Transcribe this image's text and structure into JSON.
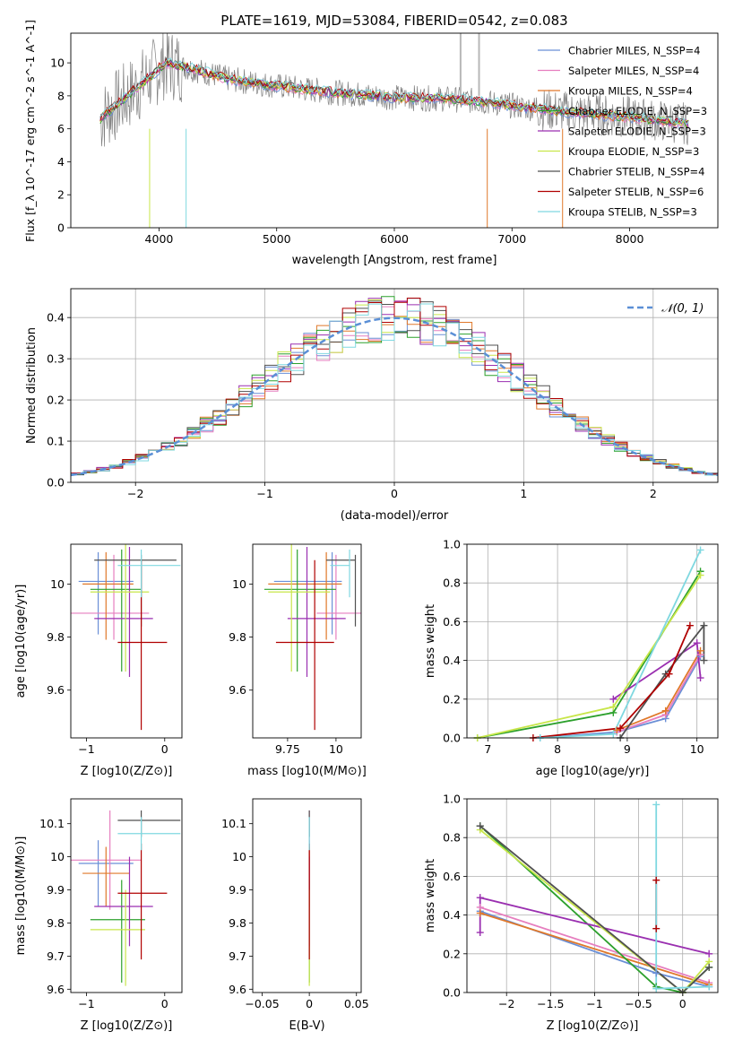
{
  "figure_title": "PLATE=1619, MJD=53084, FIBERID=0542, z=0.083",
  "colors": {
    "Chabrier MILES": "#6a8fd6",
    "Salpeter MILES": "#e67ebf",
    "Kroupa MILES": "#e0782a",
    "Chabrier ELODIE": "#2ca02c",
    "Salpeter ELODIE": "#9a2fb0",
    "Kroupa ELODIE": "#c8e64a",
    "Chabrier STELIB": "#505050",
    "Salpeter STELIB": "#b00000",
    "Kroupa STELIB": "#7fd8e0",
    "data": "#808080",
    "normal": "#5a8fd6"
  },
  "chart_data": [
    {
      "id": "spectrum",
      "type": "line",
      "title": "PLATE=1619, MJD=53084, FIBERID=0542, z=0.083",
      "xlabel": "wavelength [Angstrom, rest frame]",
      "ylabel": "Flux [f_λ 10^-17 erg cm^-2 s^-1 A^-1]",
      "xlim": [
        3250,
        8750
      ],
      "ylim": [
        0,
        11.8
      ],
      "xticks": [
        4000,
        5000,
        6000,
        7000,
        8000
      ],
      "yticks": [
        0,
        2,
        4,
        6,
        8,
        10
      ],
      "legend_position": "top-right",
      "legend": [
        "Chabrier MILES, N_SSP=4",
        "Salpeter MILES, N_SSP=4",
        "Kroupa MILES, N_SSP=4",
        "Chabrier ELODIE, N_SSP=3",
        "Salpeter ELODIE, N_SSP=3",
        "Kroupa ELODIE, N_SSP=3",
        "Chabrier STELIB, N_SSP=4",
        "Salpeter STELIB, N_SSP=6",
        "Kroupa STELIB, N_SSP=3"
      ],
      "continuum": {
        "x": [
          3500,
          3700,
          3900,
          4050,
          4300,
          4600,
          5000,
          5500,
          6000,
          6500,
          6800,
          7100,
          7500,
          8000,
          8500
        ],
        "y": [
          6.6,
          7.8,
          9.0,
          10.0,
          9.6,
          9.0,
          8.6,
          8.2,
          7.9,
          7.8,
          7.6,
          7.3,
          7.0,
          6.7,
          6.3
        ]
      },
      "grid": false
    },
    {
      "id": "residuals",
      "type": "histogram",
      "xlabel": "(data-model)/error",
      "ylabel": "Normed distribution",
      "xlim": [
        -2.5,
        2.5
      ],
      "ylim": [
        0,
        0.47
      ],
      "xticks": [
        -2,
        -1,
        0,
        1,
        2
      ],
      "yticks": [
        0.0,
        0.1,
        0.2,
        0.3,
        0.4
      ],
      "legend": [
        "𝒩(0, 1)"
      ],
      "legend_position": "top-right",
      "bin_width": 0.1,
      "grid": true
    },
    {
      "id": "age_vs_z",
      "type": "errorbar",
      "xlabel": "Z [log10(Z/Z⊙)]",
      "ylabel": "age [log10(age/yr)]",
      "xlim": [
        -1.2,
        0.22
      ],
      "ylim": [
        9.42,
        10.15
      ],
      "xticks": [
        -1,
        0
      ],
      "yticks": [
        9.6,
        9.8,
        10.0
      ],
      "points": [
        {
          "model": "Chabrier MILES",
          "x": -0.85,
          "xerr": [
            0.25,
            0.45
          ],
          "y": 10.01,
          "yerr": [
            0.2,
            0.11
          ]
        },
        {
          "model": "Salpeter MILES",
          "x": -0.65,
          "xerr": [
            0.55,
            0.45
          ],
          "y": 9.89,
          "yerr": [
            0.1,
            0.22
          ]
        },
        {
          "model": "Kroupa MILES",
          "x": -0.75,
          "xerr": [
            0.3,
            0.35
          ],
          "y": 10.0,
          "yerr": [
            0.21,
            0.12
          ]
        },
        {
          "model": "Chabrier ELODIE",
          "x": -0.55,
          "xerr": [
            0.4,
            0.25
          ],
          "y": 9.98,
          "yerr": [
            0.31,
            0.15
          ]
        },
        {
          "model": "Salpeter ELODIE",
          "x": -0.45,
          "xerr": [
            0.45,
            0.3
          ],
          "y": 9.87,
          "yerr": [
            0.22,
            0.27
          ]
        },
        {
          "model": "Kroupa ELODIE",
          "x": -0.5,
          "xerr": [
            0.45,
            0.3
          ],
          "y": 9.97,
          "yerr": [
            0.3,
            0.18
          ]
        },
        {
          "model": "Chabrier STELIB",
          "x": -0.3,
          "xerr": [
            0.6,
            0.45
          ],
          "y": 10.09,
          "yerr": [
            0.25,
            0.02
          ]
        },
        {
          "model": "Salpeter STELIB",
          "x": -0.3,
          "xerr": [
            0.3,
            0.33
          ],
          "y": 9.78,
          "yerr": [
            0.33,
            0.31
          ]
        },
        {
          "model": "Kroupa STELIB",
          "x": -0.3,
          "xerr": [
            0.3,
            0.5
          ],
          "y": 10.07,
          "yerr": [
            0.12,
            0.06
          ]
        }
      ]
    },
    {
      "id": "age_vs_mass",
      "type": "errorbar",
      "xlabel": "mass [log10(M/M⊙)]",
      "ylabel": "",
      "xlim": [
        9.57,
        10.13
      ],
      "ylim": [
        9.42,
        10.15
      ],
      "xticks": [
        9.75,
        10.0
      ],
      "yticks": [
        9.6,
        9.8,
        10.0
      ],
      "points": [
        {
          "model": "Chabrier MILES",
          "x": 9.98,
          "xerr": [
            0.3,
            0.05
          ],
          "y": 10.01,
          "yerr": [
            0.2,
            0.11
          ]
        },
        {
          "model": "Salpeter MILES",
          "x": 10.0,
          "xerr": [
            0.1,
            0.13
          ],
          "y": 9.89,
          "yerr": [
            0.1,
            0.22
          ]
        },
        {
          "model": "Kroupa MILES",
          "x": 9.95,
          "xerr": [
            0.3,
            0.08
          ],
          "y": 10.0,
          "yerr": [
            0.21,
            0.12
          ]
        },
        {
          "model": "Chabrier ELODIE",
          "x": 9.8,
          "xerr": [
            0.17,
            0.2
          ],
          "y": 9.98,
          "yerr": [
            0.31,
            0.15
          ]
        },
        {
          "model": "Salpeter ELODIE",
          "x": 9.85,
          "xerr": [
            0.1,
            0.2
          ],
          "y": 9.87,
          "yerr": [
            0.22,
            0.27
          ]
        },
        {
          "model": "Kroupa ELODIE",
          "x": 9.77,
          "xerr": [
            0.12,
            0.2
          ],
          "y": 9.97,
          "yerr": [
            0.3,
            0.18
          ]
        },
        {
          "model": "Chabrier STELIB",
          "x": 10.1,
          "xerr": [
            0.15,
            0.0
          ],
          "y": 10.09,
          "yerr": [
            0.25,
            0.02
          ]
        },
        {
          "model": "Salpeter STELIB",
          "x": 9.89,
          "xerr": [
            0.2,
            0.1
          ],
          "y": 9.78,
          "yerr": [
            0.33,
            0.31
          ]
        },
        {
          "model": "Kroupa STELIB",
          "x": 10.07,
          "xerr": [
            0.1,
            0.0
          ],
          "y": 10.07,
          "yerr": [
            0.12,
            0.06
          ]
        }
      ]
    },
    {
      "id": "massweight_vs_age",
      "type": "line",
      "xlabel": "age [log10(age/yr)]",
      "ylabel": "mass weight",
      "xlim": [
        6.7,
        10.3
      ],
      "ylim": [
        0,
        1.0
      ],
      "xticks": [
        7,
        8,
        9,
        10
      ],
      "yticks": [
        0.0,
        0.2,
        0.4,
        0.6,
        0.8,
        1.0
      ],
      "grid": true,
      "series": [
        {
          "name": "Chabrier MILES",
          "x": [
            7.75,
            8.85,
            9.55,
            10.05
          ],
          "y": [
            0.0,
            0.03,
            0.1,
            0.42
          ]
        },
        {
          "name": "Salpeter MILES",
          "x": [
            8.85,
            9.55,
            10.05
          ],
          "y": [
            0.03,
            0.12,
            0.43
          ]
        },
        {
          "name": "Kroupa MILES",
          "x": [
            8.85,
            9.55,
            10.05
          ],
          "y": [
            0.04,
            0.14,
            0.45
          ]
        },
        {
          "name": "Chabrier ELODIE",
          "x": [
            6.85,
            8.8,
            10.05
          ],
          "y": [
            0.0,
            0.13,
            0.86
          ]
        },
        {
          "name": "Salpeter ELODIE",
          "x": [
            8.8,
            10.0,
            10.05
          ],
          "y": [
            0.2,
            0.49,
            0.31
          ]
        },
        {
          "name": "Kroupa ELODIE",
          "x": [
            6.85,
            8.8,
            10.05
          ],
          "y": [
            0.0,
            0.16,
            0.84
          ]
        },
        {
          "name": "Chabrier STELIB",
          "x": [
            8.9,
            9.55,
            10.1,
            10.1
          ],
          "y": [
            0.0,
            0.33,
            0.58,
            0.4
          ]
        },
        {
          "name": "Salpeter STELIB",
          "x": [
            7.65,
            8.9,
            9.6,
            9.9
          ],
          "y": [
            0.0,
            0.05,
            0.33,
            0.58
          ]
        },
        {
          "name": "Kroupa STELIB",
          "x": [
            7.75,
            8.8,
            10.05
          ],
          "y": [
            0.0,
            0.02,
            0.97
          ]
        }
      ]
    },
    {
      "id": "mass_vs_z",
      "type": "errorbar",
      "xlabel": "Z [log10(Z/Z⊙)]",
      "ylabel": "mass [log10(M/M⊙)]",
      "xlim": [
        -1.2,
        0.22
      ],
      "ylim": [
        9.59,
        10.175
      ],
      "xticks": [
        -1,
        0
      ],
      "yticks": [
        9.6,
        9.7,
        9.8,
        9.9,
        10.0,
        10.1
      ],
      "points": [
        {
          "model": "Chabrier MILES",
          "x": -0.85,
          "xerr": [
            0.25,
            0.45
          ],
          "y": 9.98,
          "yerr": [
            0.13,
            0.07
          ]
        },
        {
          "model": "Salpeter MILES",
          "x": -0.7,
          "xerr": [
            0.5,
            0.4
          ],
          "y": 9.99,
          "yerr": [
            0.15,
            0.15
          ]
        },
        {
          "model": "Kroupa MILES",
          "x": -0.75,
          "xerr": [
            0.3,
            0.3
          ],
          "y": 9.95,
          "yerr": [
            0.1,
            0.08
          ]
        },
        {
          "model": "Chabrier ELODIE",
          "x": -0.55,
          "xerr": [
            0.4,
            0.3
          ],
          "y": 9.81,
          "yerr": [
            0.19,
            0.12
          ]
        },
        {
          "model": "Salpeter ELODIE",
          "x": -0.45,
          "xerr": [
            0.45,
            0.3
          ],
          "y": 9.85,
          "yerr": [
            0.12,
            0.15
          ]
        },
        {
          "model": "Kroupa ELODIE",
          "x": -0.5,
          "xerr": [
            0.45,
            0.25
          ],
          "y": 9.78,
          "yerr": [
            0.17,
            0.12
          ]
        },
        {
          "model": "Chabrier STELIB",
          "x": -0.3,
          "xerr": [
            0.3,
            0.5
          ],
          "y": 10.11,
          "yerr": [
            0.05,
            0.03
          ]
        },
        {
          "model": "Salpeter STELIB",
          "x": -0.3,
          "xerr": [
            0.3,
            0.33
          ],
          "y": 9.89,
          "yerr": [
            0.2,
            0.15
          ]
        },
        {
          "model": "Kroupa STELIB",
          "x": -0.3,
          "xerr": [
            0.3,
            0.5
          ],
          "y": 10.07,
          "yerr": [
            0.05,
            0.05
          ]
        }
      ]
    },
    {
      "id": "mass_vs_ebv",
      "type": "errorbar",
      "xlabel": "E(B-V)",
      "ylabel": "",
      "xlim": [
        -0.06,
        0.055
      ],
      "ylim": [
        9.59,
        10.175
      ],
      "xticks": [
        -0.05,
        0.0,
        0.05
      ],
      "yticks": [
        9.6,
        9.7,
        9.8,
        9.9,
        10.0,
        10.1
      ],
      "points": [
        {
          "model": "Chabrier MILES",
          "x": 0.0,
          "xerr": [
            0,
            0
          ],
          "y": 9.98,
          "yerr": [
            0.13,
            0.07
          ]
        },
        {
          "model": "Salpeter MILES",
          "x": 0.0,
          "xerr": [
            0,
            0
          ],
          "y": 9.99,
          "yerr": [
            0.15,
            0.15
          ]
        },
        {
          "model": "Kroupa MILES",
          "x": 0.0,
          "xerr": [
            0,
            0
          ],
          "y": 9.95,
          "yerr": [
            0.1,
            0.08
          ]
        },
        {
          "model": "Chabrier ELODIE",
          "x": 0.0,
          "xerr": [
            0,
            0
          ],
          "y": 9.81,
          "yerr": [
            0.19,
            0.12
          ]
        },
        {
          "model": "Salpeter ELODIE",
          "x": 0.0,
          "xerr": [
            0,
            0
          ],
          "y": 9.85,
          "yerr": [
            0.12,
            0.15
          ]
        },
        {
          "model": "Kroupa ELODIE",
          "x": 0.0,
          "xerr": [
            0,
            0
          ],
          "y": 9.78,
          "yerr": [
            0.17,
            0.12
          ]
        },
        {
          "model": "Chabrier STELIB",
          "x": 0.0,
          "xerr": [
            0,
            0
          ],
          "y": 10.11,
          "yerr": [
            0.05,
            0.03
          ]
        },
        {
          "model": "Salpeter STELIB",
          "x": 0.0,
          "xerr": [
            0,
            0
          ],
          "y": 9.89,
          "yerr": [
            0.2,
            0.15
          ]
        },
        {
          "model": "Kroupa STELIB",
          "x": 0.0,
          "xerr": [
            0,
            0
          ],
          "y": 10.07,
          "yerr": [
            0.05,
            0.05
          ]
        }
      ]
    },
    {
      "id": "massweight_vs_z",
      "type": "line",
      "xlabel": "Z [log10(Z/Z⊙)]",
      "ylabel": "mass weight",
      "xlim": [
        -2.45,
        0.4
      ],
      "ylim": [
        0,
        1.0
      ],
      "xticks": [
        -2.0,
        -1.5,
        -1.0,
        -0.5,
        0.0
      ],
      "yticks": [
        0.0,
        0.2,
        0.4,
        0.6,
        0.8,
        1.0
      ],
      "grid": true,
      "series": [
        {
          "name": "Chabrier MILES",
          "x": [
            -2.3,
            -0.3,
            0.3
          ],
          "y": [
            0.42,
            0.1,
            0.03
          ]
        },
        {
          "name": "Salpeter MILES",
          "x": [
            -2.3,
            0.3
          ],
          "y": [
            0.44,
            0.05
          ]
        },
        {
          "name": "Kroupa MILES",
          "x": [
            -2.3,
            0.3
          ],
          "y": [
            0.41,
            0.04
          ]
        },
        {
          "name": "Chabrier ELODIE",
          "x": [
            -2.3,
            -0.3,
            0.0,
            0.3
          ],
          "y": [
            0.86,
            0.03,
            0.0,
            0.13
          ]
        },
        {
          "name": "Salpeter ELODIE",
          "x": [
            -2.3,
            -2.3,
            0.3
          ],
          "y": [
            0.31,
            0.49,
            0.2
          ]
        },
        {
          "name": "Kroupa ELODIE",
          "x": [
            -2.3,
            0.0,
            0.3
          ],
          "y": [
            0.84,
            0.0,
            0.16
          ]
        },
        {
          "name": "Chabrier STELIB",
          "x": [
            -2.3,
            0.0,
            0.3
          ],
          "y": [
            0.86,
            0.0,
            0.13
          ]
        },
        {
          "name": "Salpeter STELIB",
          "x": [
            -0.3,
            -0.3
          ],
          "y": [
            0.33,
            0.58
          ]
        },
        {
          "name": "Kroupa STELIB",
          "x": [
            -0.3,
            -0.3,
            0.3
          ],
          "y": [
            0.97,
            0.02,
            0.03
          ]
        }
      ]
    }
  ]
}
